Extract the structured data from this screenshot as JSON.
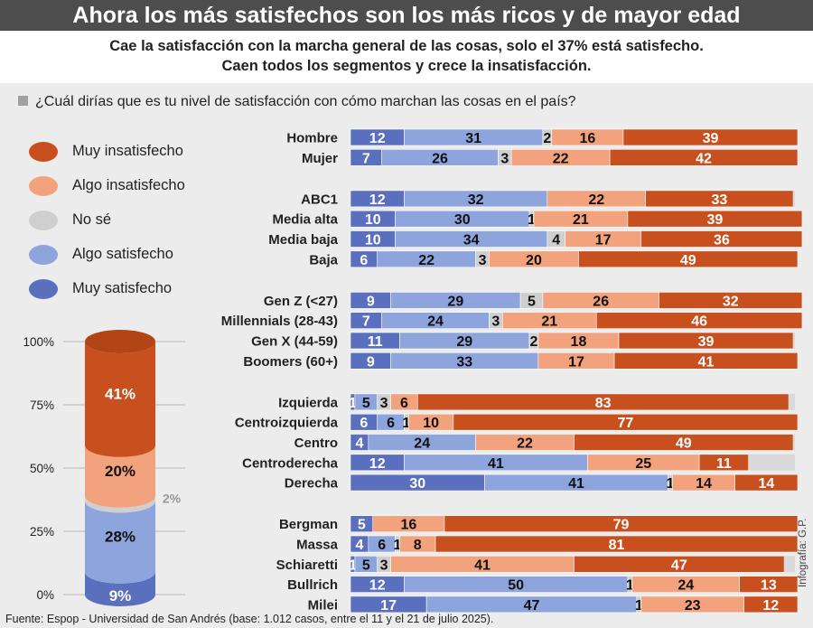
{
  "title": "Ahora los más satisfechos son los más ricos y de mayor edad",
  "subtitle_line1": "Cae la satisfacción con la marcha general de las cosas, solo el 37% está satisfecho.",
  "subtitle_line2": "Caen todos los segmentos y crece la insatisfacción.",
  "question": "¿Cuál dirías que es tu nivel de satisfacción con cómo marchan las cosas en el país?",
  "footer": "Fuente: Espop - Universidad de San Andrés (base: 1.012 casos, entre el 11 y el 21 de julio 2025).",
  "credit": "Infografía: G.P.",
  "colors": {
    "muy_satisfecho": "#5b6fbf",
    "algo_satisfecho": "#8ea4dc",
    "no_se": "#cfcfcf",
    "algo_insatisfecho": "#f2a27c",
    "muy_insatisfecho": "#c8501e"
  },
  "legend": [
    {
      "label": "Muy insatisfecho",
      "color": "#c8501e"
    },
    {
      "label": "Algo insatisfecho",
      "color": "#f2a27c"
    },
    {
      "label": "No sé",
      "color": "#cfcfcf"
    },
    {
      "label": "Algo satisfecho",
      "color": "#8ea4dc"
    },
    {
      "label": "Muy satisfecho",
      "color": "#5b6fbf"
    }
  ],
  "chart_data": [
    {
      "type": "bar",
      "stacked": true,
      "orientation": "horizontal",
      "segment_order": [
        "Muy satisfecho",
        "Algo satisfecho",
        "No sé",
        "Algo insatisfecho",
        "Muy insatisfecho"
      ],
      "groups": [
        {
          "rows": [
            {
              "label": "Hombre",
              "values": [
                12,
                31,
                2,
                16,
                39
              ]
            },
            {
              "label": "Mujer",
              "values": [
                7,
                26,
                3,
                22,
                42
              ]
            }
          ]
        },
        {
          "rows": [
            {
              "label": "ABC1",
              "values": [
                12,
                32,
                0,
                22,
                33
              ]
            },
            {
              "label": "Media alta",
              "values": [
                10,
                30,
                1,
                21,
                39
              ]
            },
            {
              "label": "Media baja",
              "values": [
                10,
                34,
                4,
                17,
                36
              ]
            },
            {
              "label": "Baja",
              "values": [
                6,
                22,
                3,
                20,
                49
              ]
            }
          ]
        },
        {
          "rows": [
            {
              "label": "Gen Z (<27)",
              "values": [
                9,
                29,
                5,
                26,
                32
              ]
            },
            {
              "label": "Millennials (28-43)",
              "values": [
                7,
                24,
                3,
                21,
                46
              ]
            },
            {
              "label": "Gen X (44-59)",
              "values": [
                11,
                29,
                2,
                18,
                39
              ]
            },
            {
              "label": "Boomers (60+)",
              "values": [
                9,
                33,
                0,
                17,
                41
              ]
            }
          ]
        },
        {
          "rows": [
            {
              "label": "Izquierda",
              "values": [
                1,
                5,
                3,
                6,
                83
              ]
            },
            {
              "label": "Centroizquierda",
              "values": [
                6,
                6,
                1,
                10,
                77
              ]
            },
            {
              "label": "Centro",
              "values": [
                4,
                24,
                0,
                22,
                49
              ]
            },
            {
              "label": "Centroderecha",
              "values": [
                12,
                41,
                0,
                25,
                11
              ]
            },
            {
              "label": "Derecha",
              "values": [
                30,
                41,
                1,
                14,
                14
              ]
            }
          ]
        },
        {
          "rows": [
            {
              "label": "Bergman",
              "values": [
                5,
                0,
                0,
                16,
                79
              ]
            },
            {
              "label": "Massa",
              "values": [
                4,
                6,
                1,
                8,
                81
              ]
            },
            {
              "label": "Schiaretti",
              "values": [
                1,
                5,
                3,
                41,
                47
              ]
            },
            {
              "label": "Bullrich",
              "values": [
                12,
                50,
                1,
                24,
                13
              ]
            },
            {
              "label": "Milei",
              "values": [
                17,
                47,
                1,
                23,
                12
              ]
            }
          ]
        }
      ]
    },
    {
      "type": "bar",
      "stacked": true,
      "orientation": "vertical",
      "segments": [
        {
          "name": "Muy satisfecho",
          "value": 9,
          "label": "9%"
        },
        {
          "name": "Algo satisfecho",
          "value": 28,
          "label": "28%"
        },
        {
          "name": "No sé",
          "value": 2,
          "label": "2%"
        },
        {
          "name": "Algo insatisfecho",
          "value": 20,
          "label": "20%"
        },
        {
          "name": "Muy insatisfecho",
          "value": 41,
          "label": "41%"
        }
      ],
      "ylim": [
        0,
        100
      ],
      "ticks": [
        "0%",
        "25%",
        "50%",
        "75%",
        "100%"
      ]
    }
  ]
}
